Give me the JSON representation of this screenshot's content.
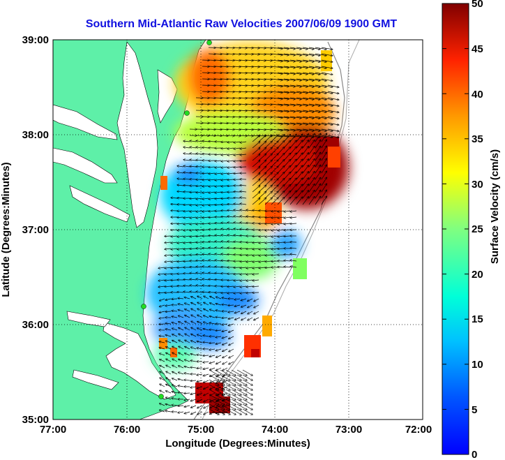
{
  "title": "Southern Mid-Atlantic Raw Velocities 2007/06/09 1900 GMT",
  "x_axis": {
    "label": "Longitude (Degrees:Minutes)",
    "ticks": [
      "77:00",
      "76:00",
      "75:00",
      "74:00",
      "73:00",
      "72:00"
    ],
    "range": [
      -77,
      -72
    ]
  },
  "y_axis": {
    "label": "Latitude (Degrees:Minutes)",
    "ticks": [
      "39:00",
      "38:00",
      "37:00",
      "36:00",
      "35:00"
    ],
    "range": [
      35,
      39
    ]
  },
  "colorbar": {
    "label": "Surface Velocity (cm/s)",
    "ticks": [
      "50",
      "45",
      "40",
      "35",
      "30",
      "25",
      "20",
      "15",
      "10",
      "5",
      "0"
    ],
    "range": [
      0,
      50
    ],
    "colormap": "jet"
  },
  "colors": {
    "land": "#5ef0a8",
    "water": "#ffffff",
    "title": "#1010e0",
    "station": "#22dd22"
  },
  "grid": "dotted",
  "chart_data": {
    "type": "heatmap",
    "title": "Southern Mid-Atlantic Raw Velocities 2007/06/09 1900 GMT",
    "xlabel": "Longitude (Degrees:Minutes)",
    "ylabel": "Latitude (Degrees:Minutes)",
    "xlim": [
      -77,
      -72
    ],
    "ylim": [
      35,
      39
    ],
    "zlabel": "Surface Velocity (cm/s)",
    "zlim": [
      0,
      50
    ],
    "regions": [
      {
        "lon": -74.8,
        "lat": 38.75,
        "speed": 42
      },
      {
        "lon": -74.3,
        "lat": 38.6,
        "speed": 25
      },
      {
        "lon": -73.8,
        "lat": 38.5,
        "speed": 33
      },
      {
        "lon": -73.5,
        "lat": 38.3,
        "speed": 40
      },
      {
        "lon": -73.7,
        "lat": 37.9,
        "speed": 45
      },
      {
        "lon": -73.9,
        "lat": 37.4,
        "speed": 50
      },
      {
        "lon": -74.5,
        "lat": 37.8,
        "speed": 24
      },
      {
        "lon": -75.0,
        "lat": 37.6,
        "speed": 10
      },
      {
        "lon": -74.6,
        "lat": 37.2,
        "speed": 15
      },
      {
        "lon": -75.2,
        "lat": 36.9,
        "speed": 12
      },
      {
        "lon": -74.7,
        "lat": 36.6,
        "speed": 8
      },
      {
        "lon": -75.1,
        "lat": 36.2,
        "speed": 7
      },
      {
        "lon": -74.3,
        "lat": 36.3,
        "speed": 9
      },
      {
        "lon": -75.2,
        "lat": 35.8,
        "speed": 8
      },
      {
        "lon": -74.9,
        "lat": 35.3,
        "speed": 45
      },
      {
        "lon": -74.0,
        "lat": 35.9,
        "speed": 44
      }
    ]
  }
}
